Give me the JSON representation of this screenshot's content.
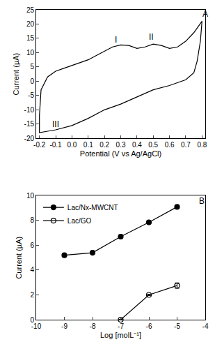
{
  "chart_data": [
    {
      "type": "line",
      "x_label": "Potential (V vs Ag/AgCl)",
      "y_label": "Current (µA)",
      "x": [
        -0.2,
        -0.19,
        -0.15,
        -0.1,
        -0.05,
        0.0,
        0.05,
        0.1,
        0.15,
        0.2,
        0.25,
        0.3,
        0.35,
        0.4,
        0.45,
        0.5,
        0.55,
        0.6,
        0.65,
        0.7,
        0.75,
        0.8,
        0.79,
        0.77,
        0.75,
        0.7,
        0.65,
        0.6,
        0.5,
        0.4,
        0.3,
        0.2,
        0.1,
        0.0,
        -0.1,
        -0.15,
        -0.2,
        -0.2
      ],
      "values": [
        -12,
        -3,
        1.5,
        3.5,
        4.5,
        5.5,
        6.5,
        7.5,
        9,
        10.5,
        12,
        12.7,
        12.5,
        11.5,
        12,
        13,
        12.5,
        11.5,
        12,
        14,
        17,
        21,
        14,
        7,
        3,
        0.5,
        -0.5,
        -1.5,
        -3,
        -5.5,
        -8,
        -10,
        -13,
        -15.5,
        -17,
        -17.5,
        -18,
        -12
      ],
      "color": "#000000",
      "line_style": "solid",
      "xlim": [
        -0.22,
        0.82
      ],
      "xticks": [
        -0.2,
        -0.1,
        {
          "value": 0,
          "label": "0.0"
        },
        0.1,
        0.2,
        0.3,
        0.4,
        0.5,
        0.6,
        0.7,
        0.8
      ],
      "ylim": [
        -20,
        25
      ],
      "yticks": [
        -20,
        -15,
        -10,
        -5,
        0,
        5,
        10,
        15,
        20,
        25
      ],
      "grid": false,
      "annotations": [
        {
          "text": "I",
          "x": 0.27,
          "y": 14.5
        },
        {
          "text": "II",
          "x": 0.49,
          "y": 15.5
        },
        {
          "text": "III",
          "x": -0.1,
          "y": -15
        },
        {
          "text": "A",
          "x": 0.82,
          "y": 23.5
        }
      ]
    },
    {
      "type": "line",
      "x_label": "Log [molL⁻¹]",
      "y_label": "Current (µA)",
      "series": [
        {
          "name": "Lac/Nx-MWCNT",
          "color": "#000000",
          "marker": "circle",
          "line_style": "solid",
          "x": [
            -9,
            -8,
            -7,
            -6,
            -5
          ],
          "values": [
            5.2,
            5.4,
            6.7,
            7.85,
            9.1
          ],
          "error": [
            0.05,
            0.12,
            0.08,
            0.08,
            0.08
          ]
        },
        {
          "name": "Lac/GO",
          "color": "#000000",
          "marker": "circle-open",
          "line_style": "solid",
          "x": [
            -7,
            -6,
            -5
          ],
          "values": [
            0,
            2.0,
            2.75
          ],
          "error": [
            0.02,
            0.05,
            0.22
          ]
        }
      ],
      "xlim": [
        -10,
        -4
      ],
      "xticks": [
        -10,
        -9,
        -8,
        -7,
        -6,
        -5,
        -4
      ],
      "ylim": [
        0,
        10
      ],
      "yticks": [
        0,
        2,
        4,
        6,
        8,
        10
      ],
      "grid": false,
      "legend": "top-left",
      "annotations": [
        {
          "text": "B",
          "x": -4.12,
          "y": 9.6
        }
      ]
    }
  ]
}
